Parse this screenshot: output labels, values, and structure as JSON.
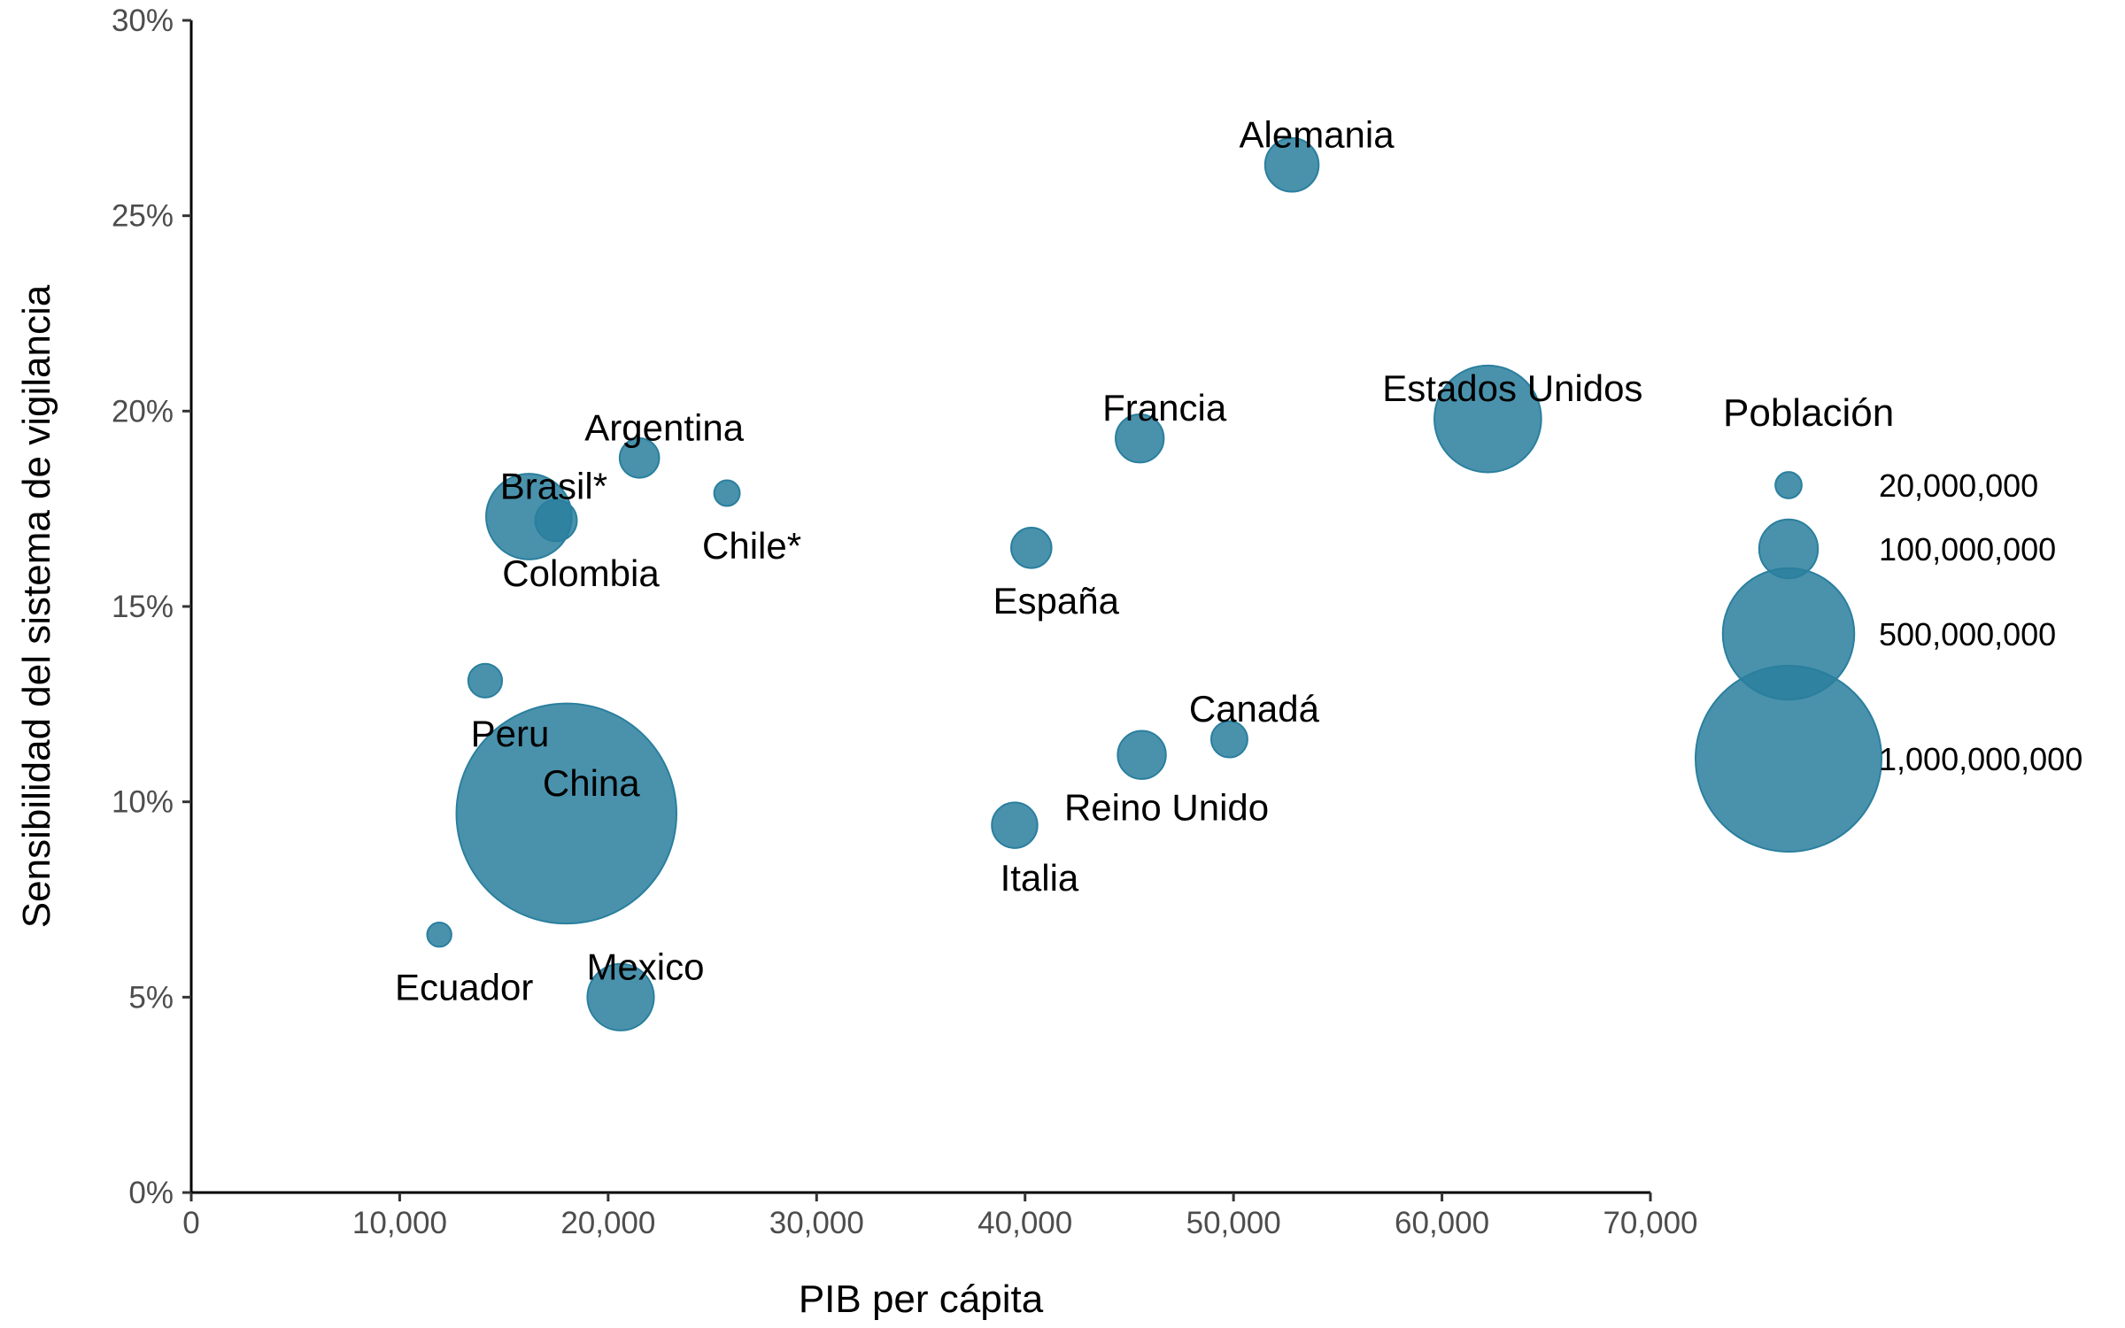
{
  "chart_data": {
    "type": "scatter",
    "xlabel": "PIB per cápita",
    "ylabel": "Sensibilidad del sistema de vigilancia",
    "xlim": [
      0,
      70000
    ],
    "ylim": [
      0,
      0.3
    ],
    "x_ticks": [
      0,
      10000,
      20000,
      30000,
      40000,
      50000,
      60000,
      70000
    ],
    "x_tick_labels": [
      "0",
      "10,000",
      "20,000",
      "30,000",
      "40,000",
      "50,000",
      "60,000",
      "70,000"
    ],
    "y_ticks": [
      0,
      0.05,
      0.1,
      0.15,
      0.2,
      0.25,
      0.3
    ],
    "y_tick_labels": [
      "0%",
      "5%",
      "10%",
      "15%",
      "20%",
      "25%",
      "30%"
    ],
    "grid": false,
    "point_color": "#2a7f9e",
    "size_legend": {
      "title": "Población",
      "position": "right",
      "entries": [
        {
          "value": 20000000,
          "label": "20,000,000"
        },
        {
          "value": 100000000,
          "label": "100,000,000"
        },
        {
          "value": 500000000,
          "label": "500,000,000"
        },
        {
          "value": 1000000000,
          "label": "1,000,000,000"
        }
      ]
    },
    "points": [
      {
        "label": "Alemania",
        "x": 52800,
        "y": 0.263,
        "population": 83000000,
        "label_side": "above"
      },
      {
        "label": "Estados Unidos",
        "x": 62200,
        "y": 0.198,
        "population": 330000000,
        "label_side": "above"
      },
      {
        "label": "Francia",
        "x": 45500,
        "y": 0.193,
        "population": 67000000,
        "label_side": "above"
      },
      {
        "label": "Argentina",
        "x": 21500,
        "y": 0.188,
        "population": 45000000,
        "label_side": "above"
      },
      {
        "label": "Chile*",
        "x": 25700,
        "y": 0.179,
        "population": 19000000,
        "label_side": "below"
      },
      {
        "label": "Brasil*",
        "x": 16200,
        "y": 0.173,
        "population": 212000000,
        "label_side": "above"
      },
      {
        "label": "Colombia",
        "x": 17500,
        "y": 0.172,
        "population": 50000000,
        "label_side": "below"
      },
      {
        "label": "España",
        "x": 40300,
        "y": 0.165,
        "population": 47000000,
        "label_side": "below"
      },
      {
        "label": "Peru",
        "x": 14100,
        "y": 0.131,
        "population": 33000000,
        "label_side": "below"
      },
      {
        "label": "Canadá",
        "x": 49800,
        "y": 0.116,
        "population": 38000000,
        "label_side": "above"
      },
      {
        "label": "Reino Unido",
        "x": 45600,
        "y": 0.112,
        "population": 67000000,
        "label_side": "below"
      },
      {
        "label": "China",
        "x": 18000,
        "y": 0.097,
        "population": 1400000000,
        "label_side": "above"
      },
      {
        "label": "Italia",
        "x": 39500,
        "y": 0.094,
        "population": 60000000,
        "label_side": "below"
      },
      {
        "label": "Ecuador",
        "x": 11900,
        "y": 0.066,
        "population": 17000000,
        "label_side": "below"
      },
      {
        "label": "Mexico",
        "x": 20600,
        "y": 0.05,
        "population": 128000000,
        "label_side": "above"
      }
    ]
  }
}
